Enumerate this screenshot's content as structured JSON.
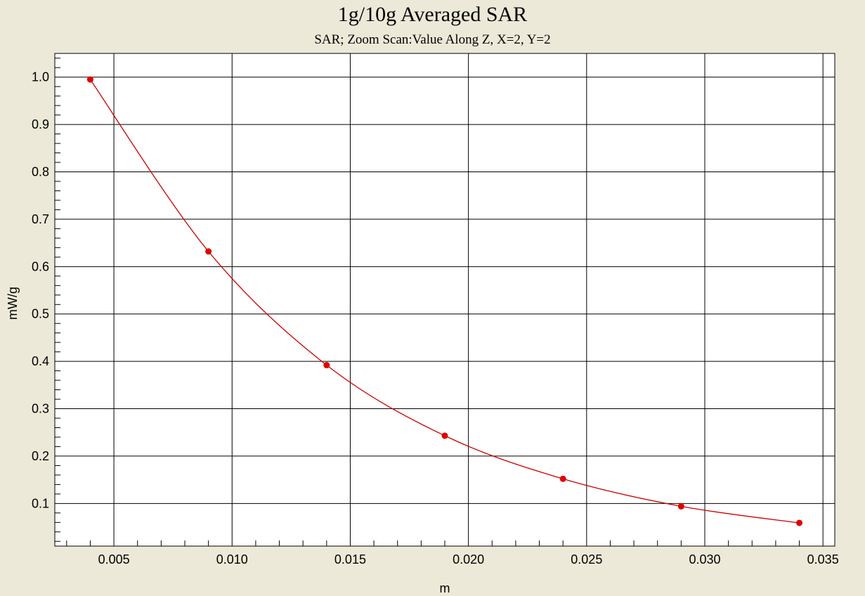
{
  "chart_data": {
    "type": "line",
    "title": "1g/10g Averaged SAR",
    "subtitle": "SAR; Zoom Scan:Value Along Z, X=2, Y=2",
    "xlabel": "m",
    "ylabel": "mW/g",
    "xlim": [
      0.0025,
      0.0355
    ],
    "ylim": [
      0.01,
      1.05
    ],
    "x_ticks": [
      0.005,
      0.01,
      0.015,
      0.02,
      0.025,
      0.03,
      0.035
    ],
    "x_tick_labels": [
      "0.005",
      "0.010",
      "0.015",
      "0.020",
      "0.025",
      "0.030",
      "0.035"
    ],
    "y_ticks": [
      0.1,
      0.2,
      0.3,
      0.4,
      0.5,
      0.6,
      0.7,
      0.8,
      0.9,
      1.0
    ],
    "y_tick_labels": [
      "0.1",
      "0.2",
      "0.3",
      "0.4",
      "0.5",
      "0.6",
      "0.7",
      "0.8",
      "0.9",
      "1.0"
    ],
    "grid": true,
    "series": [
      {
        "x": [
          0.004,
          0.009,
          0.014,
          0.019,
          0.024,
          0.029,
          0.034
        ],
        "y": [
          0.995,
          0.632,
          0.392,
          0.243,
          0.152,
          0.094,
          0.059
        ]
      }
    ],
    "colors": {
      "line": "#CC0000",
      "marker": "#E00000",
      "grid": "#000000",
      "background": "#FFFFFF",
      "frame": "#ECE9D8"
    }
  }
}
